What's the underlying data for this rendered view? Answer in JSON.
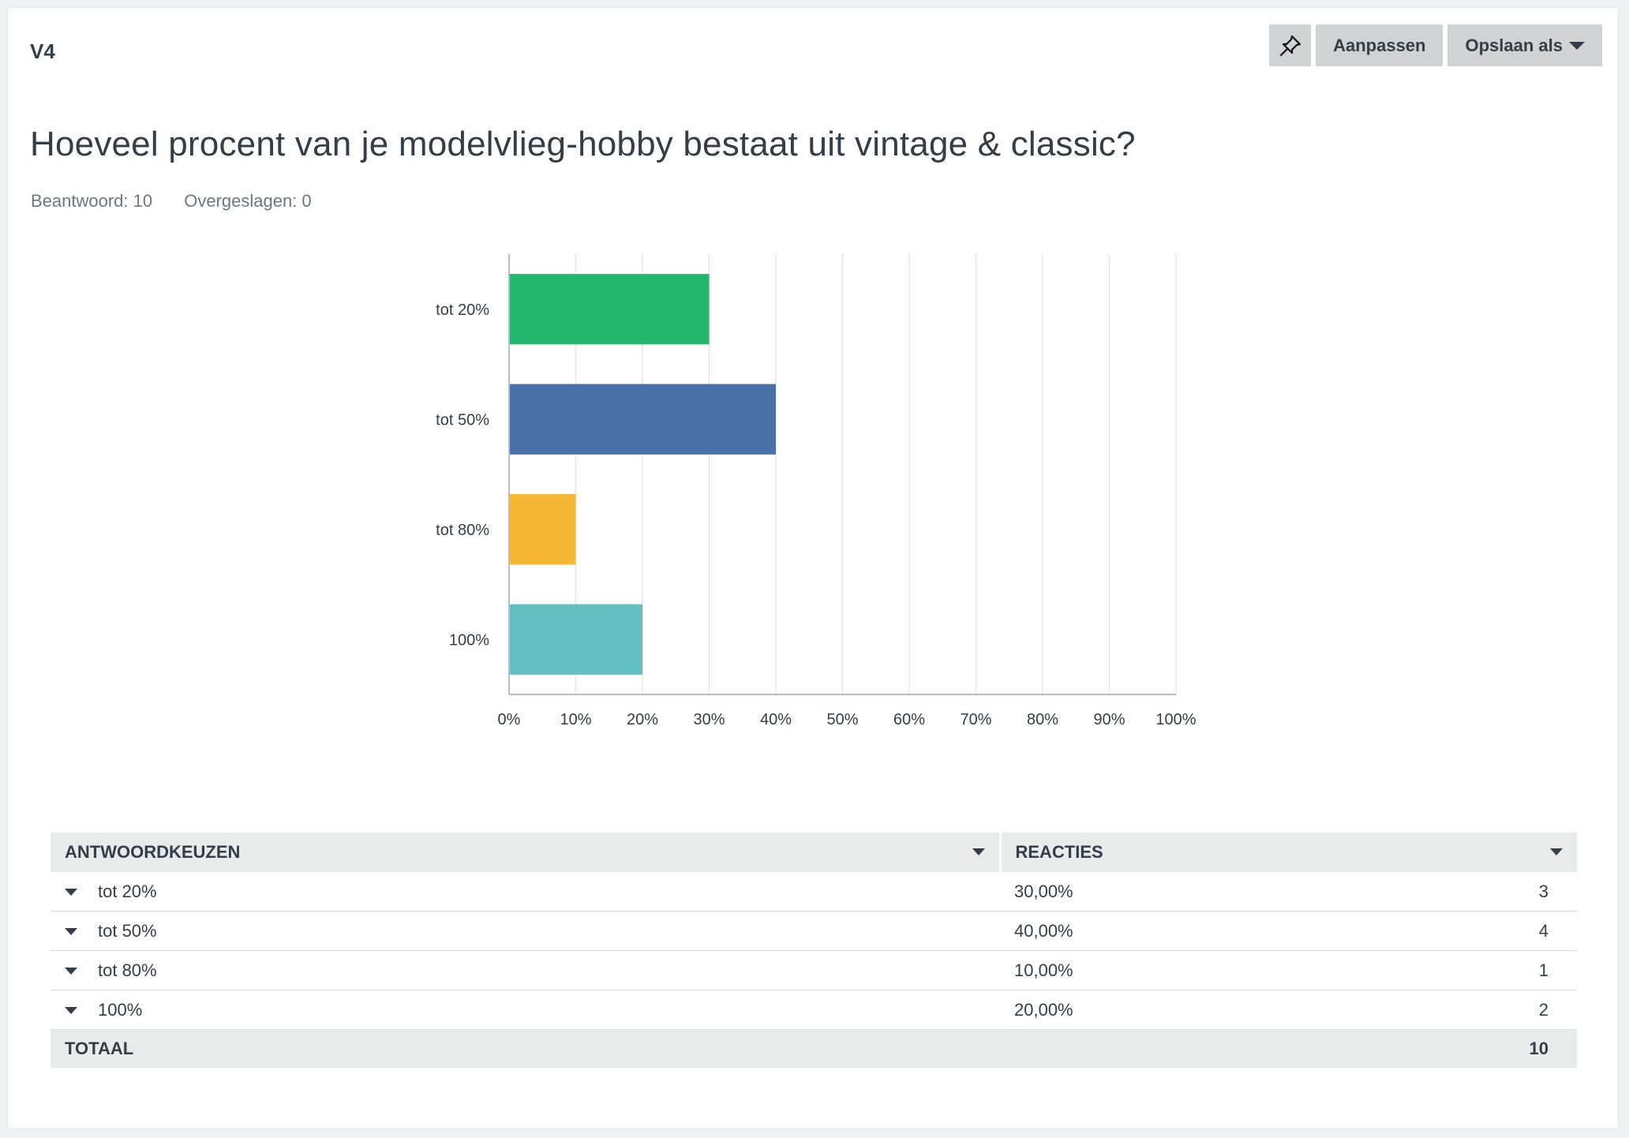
{
  "question": {
    "number": "V4",
    "title": "Hoeveel procent van je modelvlieg-hobby bestaat uit vintage & classic?",
    "answered": "Beantwoord: 10",
    "skipped": "Overgeslagen: 0"
  },
  "toolbar": {
    "pin_icon": "pin-icon",
    "customize_label": "Aanpassen",
    "save_as_label": "Opslaan als"
  },
  "chart_data": {
    "type": "bar",
    "orientation": "horizontal",
    "categories": [
      "tot 20%",
      "tot 50%",
      "tot 80%",
      "100%"
    ],
    "values": [
      30,
      40,
      10,
      20
    ],
    "colors": [
      "#23b66d",
      "#4971a8",
      "#f5b734",
      "#64bfc2"
    ],
    "xlim": [
      0,
      100
    ],
    "xticks": [
      "0%",
      "10%",
      "20%",
      "30%",
      "40%",
      "50%",
      "60%",
      "70%",
      "80%",
      "90%",
      "100%"
    ],
    "grid": true
  },
  "table": {
    "col_choice": "ANTWOORDKEUZEN",
    "col_responses": "REACTIES",
    "rows": [
      {
        "choice": "tot 20%",
        "percent": "30,00%",
        "count": "3"
      },
      {
        "choice": "tot 50%",
        "percent": "40,00%",
        "count": "4"
      },
      {
        "choice": "tot 80%",
        "percent": "10,00%",
        "count": "1"
      },
      {
        "choice": "100%",
        "percent": "20,00%",
        "count": "2"
      }
    ],
    "total_label": "TOTAAL",
    "total_value": "10"
  }
}
